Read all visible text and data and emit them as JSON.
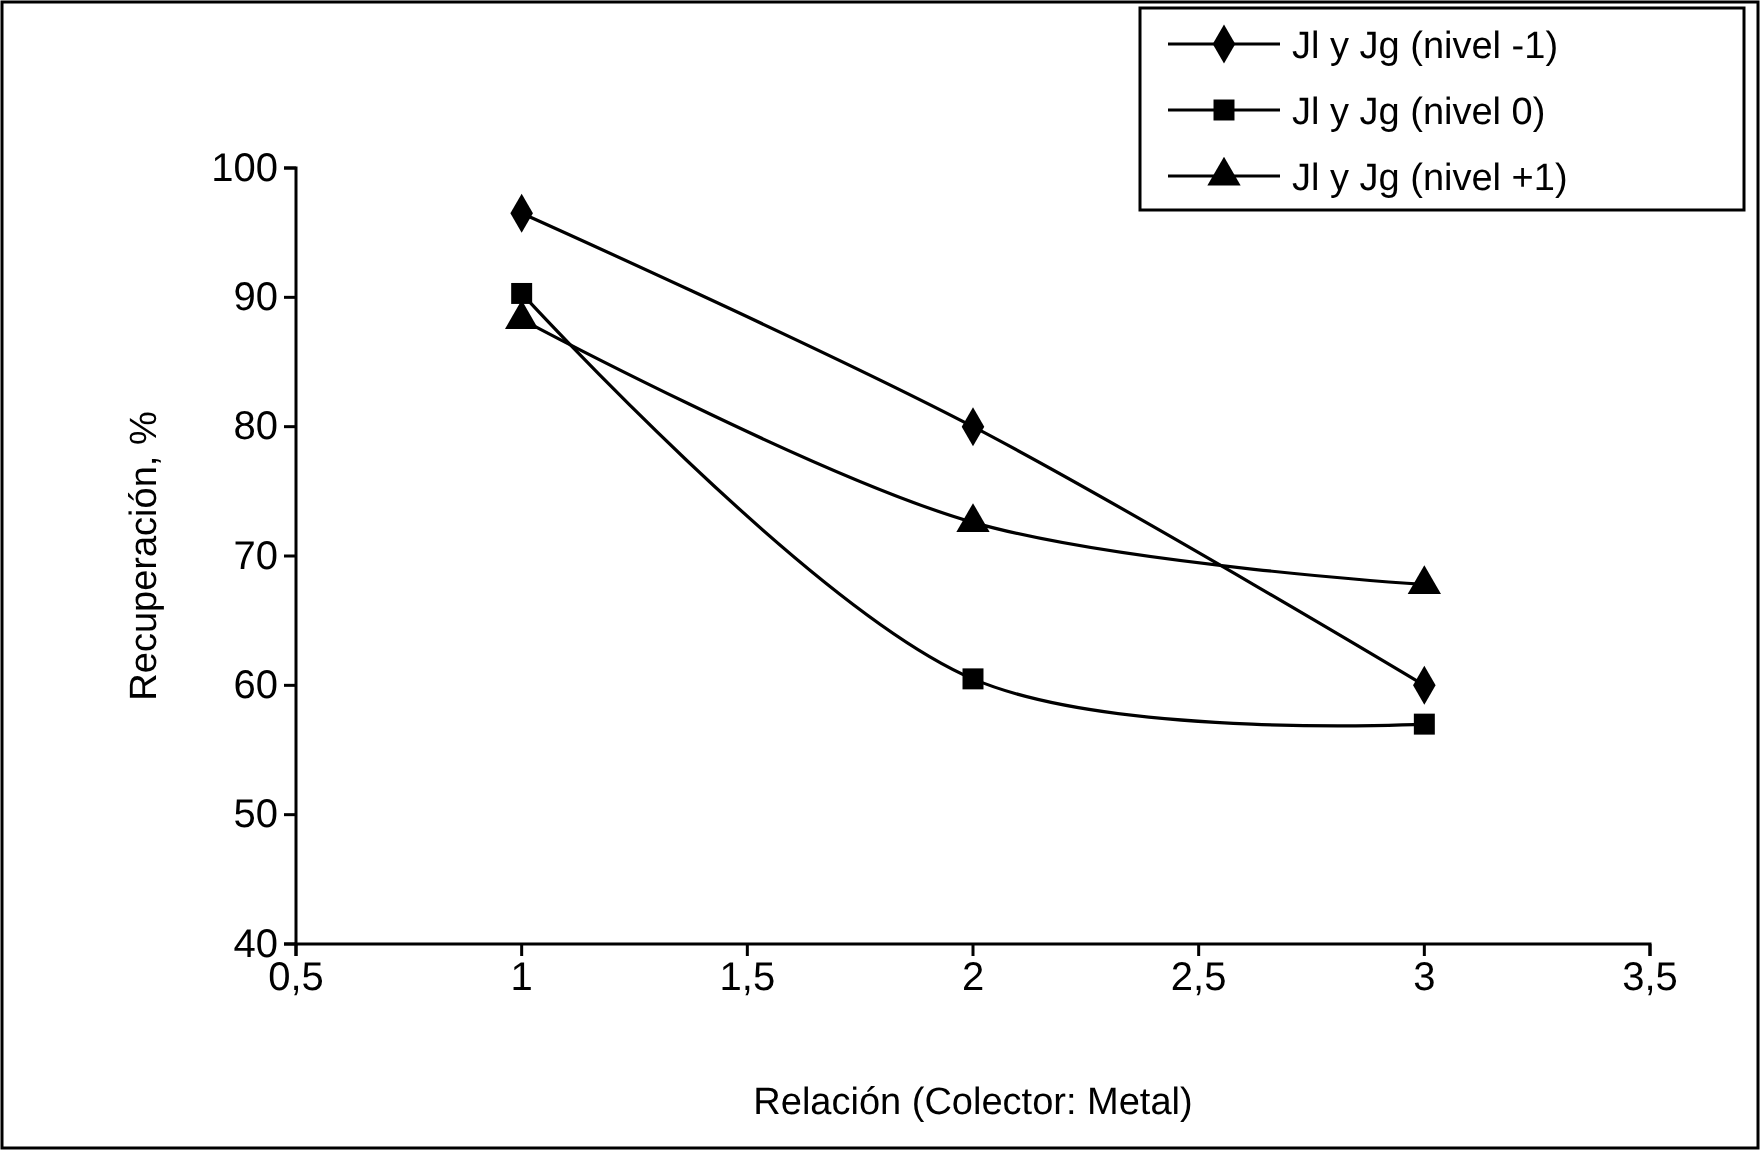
{
  "chart_data": {
    "type": "line",
    "xlabel": "Relación (Colector: Metal)",
    "ylabel": "Recuperación, %",
    "xlim": [
      0.5,
      3.5
    ],
    "xticks": [
      {
        "value": 0.5,
        "label": "0,5"
      },
      1,
      {
        "value": 1.5,
        "label": "1,5"
      },
      2,
      {
        "value": 2.5,
        "label": "2,5"
      },
      3,
      {
        "value": 3.5,
        "label": "3,5"
      }
    ],
    "ylim": [
      40,
      100
    ],
    "yticks": [
      40,
      50,
      60,
      70,
      80,
      90,
      100
    ],
    "grid": false,
    "legend": "top right",
    "line_style": "solid",
    "x": [
      1,
      2,
      3
    ],
    "series": [
      {
        "name": "Jl y Jg (nivel -1)",
        "color": "#000000",
        "marker": "diamond",
        "values": [
          96.5,
          80,
          60
        ]
      },
      {
        "name": "Jl y Jg (nivel 0)",
        "color": "#000000",
        "marker": "square",
        "values": [
          90.3,
          60.5,
          57
        ]
      },
      {
        "name": "Jl y Jg (nivel +1)",
        "color": "#000000",
        "marker": "triangle",
        "values": [
          88.3,
          72.6,
          67.8
        ]
      }
    ]
  }
}
